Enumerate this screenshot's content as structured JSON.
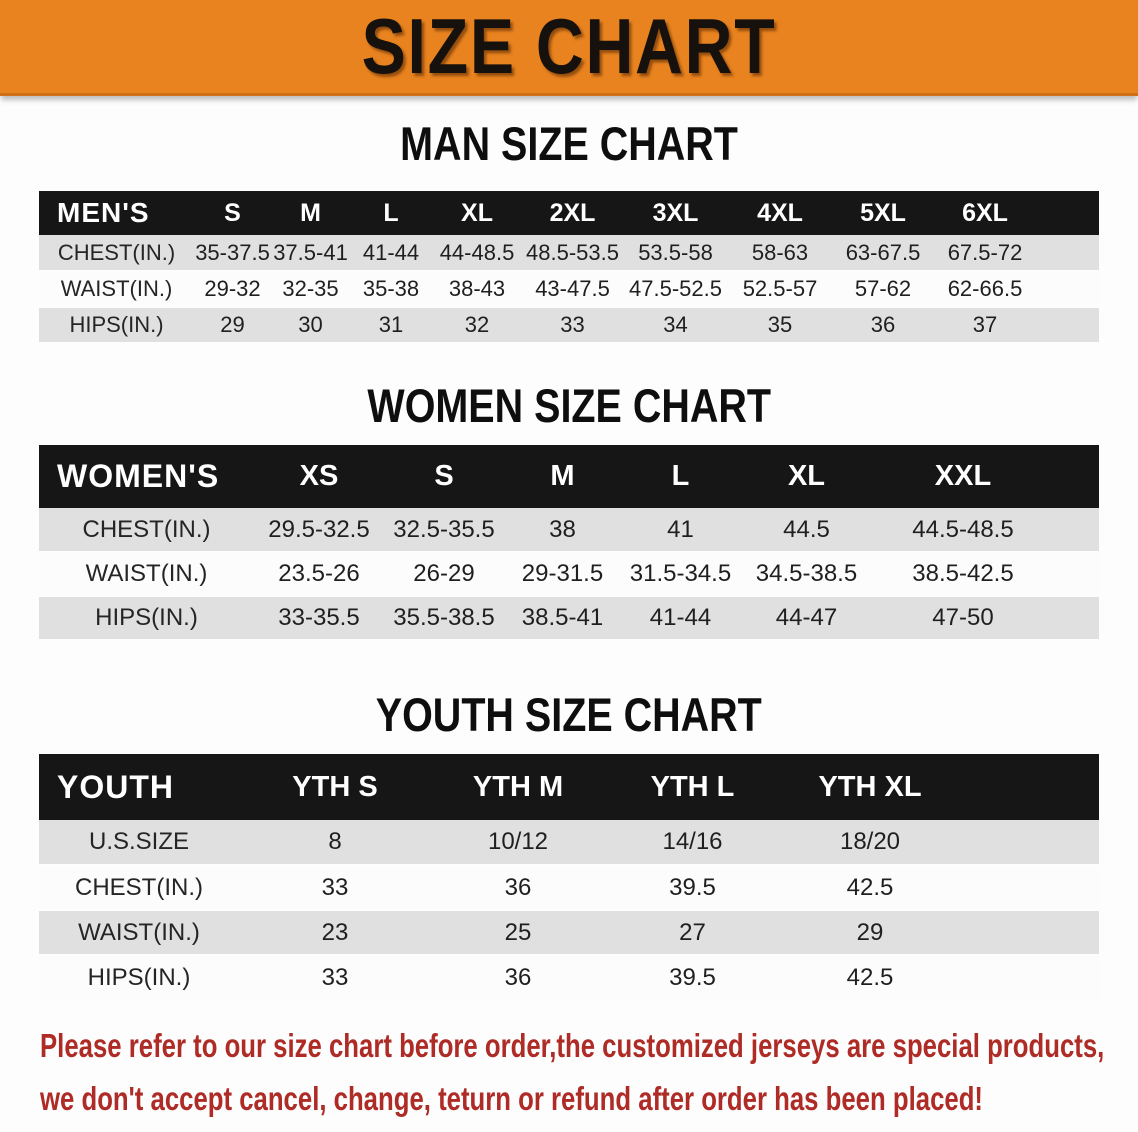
{
  "banner": {
    "title": "SIZE CHART",
    "bg_color": "#E8831F",
    "text_color": "#16110C"
  },
  "colors": {
    "header_bar": "#161616",
    "row_gray": "#E0E0E0",
    "row_white": "#FCFCFC",
    "heading_text": "#0E0E0E"
  },
  "sections": [
    {
      "heading": "MAN SIZE CHART",
      "table": {
        "corner_label": "MEN'S",
        "sizes": [
          "S",
          "M",
          "L",
          "XL",
          "2XL",
          "3XL",
          "4XL",
          "5XL",
          "6XL"
        ],
        "rows": [
          {
            "label": "CHEST(IN.)",
            "values": [
              "35-37.5",
              "37.5-41",
              "41-44",
              "44-48.5",
              "48.5-53.5",
              "53.5-58",
              "58-63",
              "63-67.5",
              "67.5-72"
            ]
          },
          {
            "label": "WAIST(IN.)",
            "values": [
              "29-32",
              "32-35",
              "35-38",
              "38-43",
              "43-47.5",
              "47.5-52.5",
              "52.5-57",
              "57-62",
              "62-66.5"
            ]
          },
          {
            "label": "HIPS(IN.)",
            "values": [
              "29",
              "30",
              "31",
              "32",
              "33",
              "34",
              "35",
              "36",
              "37"
            ]
          }
        ]
      }
    },
    {
      "heading": "WOMEN SIZE CHART",
      "table": {
        "corner_label": "WOMEN'S",
        "sizes": [
          "XS",
          "S",
          "M",
          "L",
          "XL",
          "XXL"
        ],
        "rows": [
          {
            "label": "CHEST(IN.)",
            "values": [
              "29.5-32.5",
              "32.5-35.5",
              "38",
              "41",
              "44.5",
              "44.5-48.5"
            ]
          },
          {
            "label": "WAIST(IN.)",
            "values": [
              "23.5-26",
              "26-29",
              "29-31.5",
              "31.5-34.5",
              "34.5-38.5",
              "38.5-42.5"
            ]
          },
          {
            "label": "HIPS(IN.)",
            "values": [
              "33-35.5",
              "35.5-38.5",
              "38.5-41",
              "41-44",
              "44-47",
              "47-50"
            ]
          }
        ]
      }
    },
    {
      "heading": "YOUTH SIZE CHART",
      "table": {
        "corner_label": "YOUTH",
        "sizes": [
          "YTH S",
          "YTH M",
          "YTH L",
          "YTH XL"
        ],
        "rows": [
          {
            "label": "U.S.SIZE",
            "values": [
              "8",
              "10/12",
              "14/16",
              "18/20"
            ]
          },
          {
            "label": "CHEST(IN.)",
            "values": [
              "33",
              "36",
              "39.5",
              "42.5"
            ]
          },
          {
            "label": "WAIST(IN.)",
            "values": [
              "23",
              "25",
              "27",
              "29"
            ]
          },
          {
            "label": "HIPS(IN.)",
            "values": [
              "33",
              "36",
              "39.5",
              "42.5"
            ]
          }
        ]
      }
    }
  ],
  "disclaimer": {
    "color": "#AE2B26",
    "lines": [
      "Please refer to our size chart before order,the customized jerseys are special products,",
      "we don't accept cancel, change, teturn or refund after order has been placed!"
    ]
  }
}
